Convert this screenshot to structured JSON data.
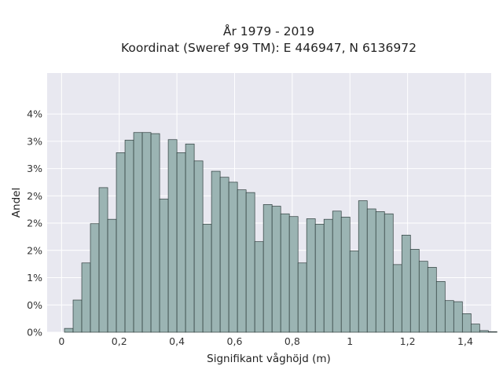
{
  "chart_data": {
    "type": "bar",
    "title": "År 1979 - 2019",
    "subtitle": "Koordinat (Sweref 99 TM): E 446947, N 6136972",
    "xlabel": "Signifikant våghöjd (m)",
    "ylabel": "Andel",
    "xlim": [
      -0.05,
      1.49
    ],
    "ylim": [
      0,
      0.0475
    ],
    "bin_width": 0.03,
    "x_start": 0.01,
    "xticks": [
      {
        "value": 0,
        "label": "0"
      },
      {
        "value": 0.2,
        "label": "0,2"
      },
      {
        "value": 0.4,
        "label": "0,4"
      },
      {
        "value": 0.6,
        "label": "0,6"
      },
      {
        "value": 0.8,
        "label": "0,8"
      },
      {
        "value": 1.0,
        "label": "1"
      },
      {
        "value": 1.2,
        "label": "1,2"
      },
      {
        "value": 1.4,
        "label": "1,4"
      }
    ],
    "yticks": [
      {
        "value": 0,
        "label": "0%"
      },
      {
        "value": 0.005,
        "label": "0%"
      },
      {
        "value": 0.01,
        "label": "1%"
      },
      {
        "value": 0.015,
        "label": "2%"
      },
      {
        "value": 0.02,
        "label": "2%"
      },
      {
        "value": 0.025,
        "label": "2%"
      },
      {
        "value": 0.03,
        "label": "3%"
      },
      {
        "value": 0.035,
        "label": "3%"
      },
      {
        "value": 0.04,
        "label": "4%"
      }
    ],
    "values": [
      0.0007,
      0.0059,
      0.0127,
      0.0199,
      0.0265,
      0.0207,
      0.0329,
      0.0352,
      0.0366,
      0.0366,
      0.0364,
      0.0244,
      0.0353,
      0.0329,
      0.0345,
      0.0314,
      0.0198,
      0.0295,
      0.0284,
      0.0275,
      0.0261,
      0.0256,
      0.0166,
      0.0234,
      0.0231,
      0.0217,
      0.0212,
      0.0127,
      0.0208,
      0.0198,
      0.0207,
      0.0222,
      0.0211,
      0.0149,
      0.0241,
      0.0226,
      0.0221,
      0.0217,
      0.0124,
      0.0178,
      0.0152,
      0.013,
      0.0119,
      0.0093,
      0.0058,
      0.0056,
      0.0034,
      0.0015,
      0.0003,
      0.0001
    ],
    "bar_color": "#9bb4b3",
    "bar_edge_color": "#2f3e3d",
    "plot_background": "#e8e8f0",
    "grid_color": "#ffffff",
    "grid": true
  }
}
